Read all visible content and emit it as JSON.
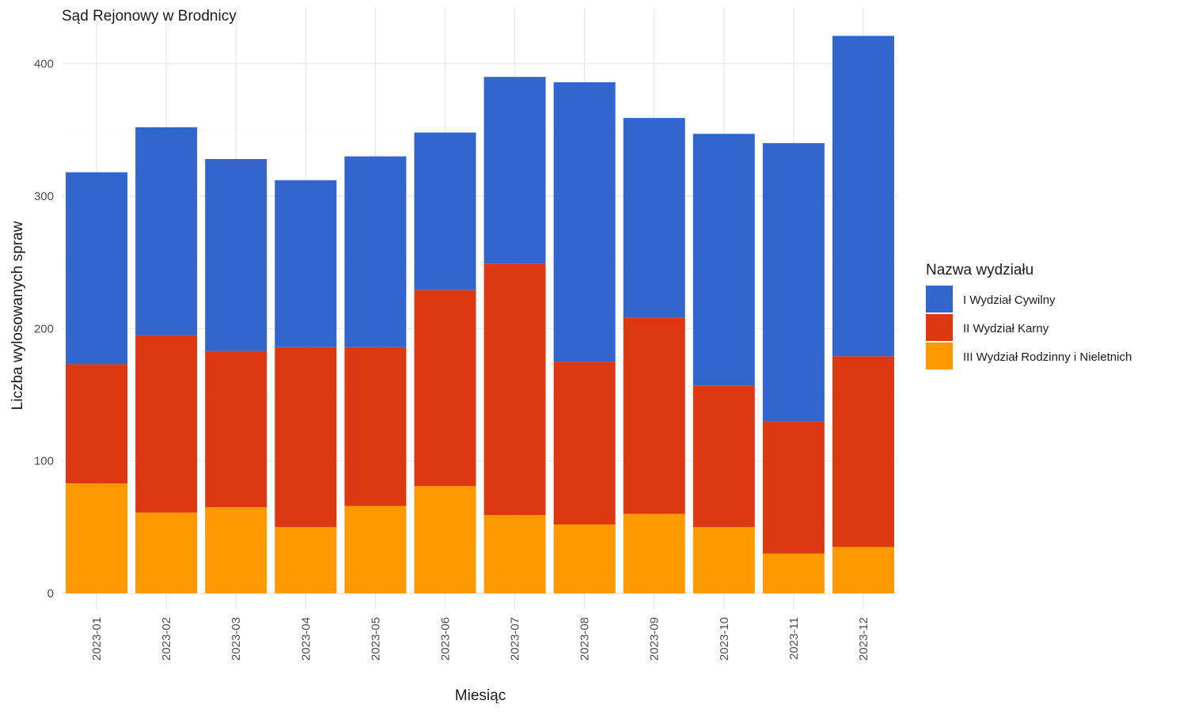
{
  "chart_data": {
    "type": "bar",
    "stacked": true,
    "title": "Sąd Rejonowy w Brodnicy",
    "xlabel": "Miesiąc",
    "ylabel": "Liczba wylosowanych spraw",
    "ylim": [
      0,
      430
    ],
    "yticks": [
      "0",
      "100",
      "200",
      "300",
      "400"
    ],
    "grid": true,
    "legend": {
      "title": "Nazwa wydziału",
      "position": "right"
    },
    "categories": [
      "2023-01",
      "2023-02",
      "2023-03",
      "2023-04",
      "2023-05",
      "2023-06",
      "2023-07",
      "2023-08",
      "2023-09",
      "2023-10",
      "2023-11",
      "2023-12"
    ],
    "series": [
      {
        "name": "I Wydział Cywilny",
        "color": "#3366cc",
        "values": [
          145,
          157,
          145,
          126,
          144,
          119,
          141,
          211,
          151,
          190,
          210,
          242
        ]
      },
      {
        "name": "II Wydział Karny",
        "color": "#dc3912",
        "values": [
          90,
          134,
          118,
          136,
          120,
          148,
          190,
          123,
          148,
          107,
          100,
          144
        ]
      },
      {
        "name": "III Wydział Rodzinny i Nieletnich",
        "color": "#ff9900",
        "values": [
          83,
          61,
          65,
          50,
          66,
          81,
          59,
          52,
          60,
          50,
          30,
          35
        ]
      }
    ]
  }
}
